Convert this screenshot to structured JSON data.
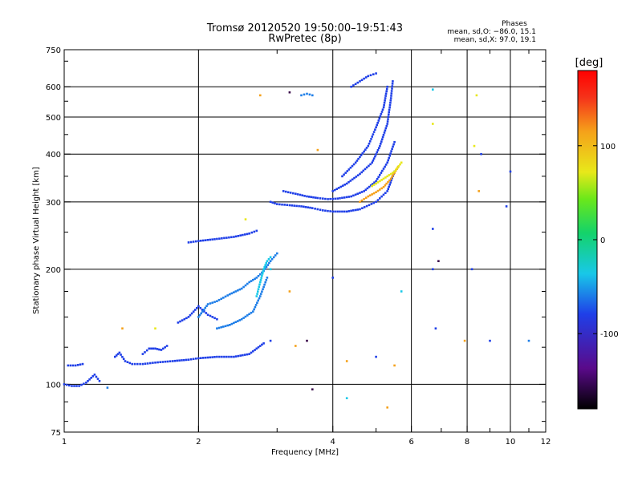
{
  "header": {
    "title_line1": "Tromsø 20120520 19:50:00–19:51:43",
    "title_line2": "RwPretec (8p)",
    "phases_title": "Phases",
    "phases_line1": "mean, sd,O: −86.0, 15.1",
    "phases_line2": "mean, sd,X:  97.0, 19.1"
  },
  "chart_data": {
    "type": "scatter",
    "xlabel": "Frequency [MHz]",
    "ylabel": "Stationary phase Virtual Height [km]",
    "xscale": "log",
    "yscale": "log",
    "xlim": [
      1,
      12
    ],
    "ylim": [
      75,
      750
    ],
    "x_ticks": [
      1,
      2,
      4,
      6,
      8,
      10,
      12
    ],
    "x_gridlines": [
      2,
      4,
      6,
      8,
      10
    ],
    "y_ticks": [
      75,
      100,
      200,
      300,
      400,
      500,
      600,
      750
    ],
    "y_gridlines": [
      100,
      200,
      300,
      400,
      500,
      600
    ],
    "grid": true,
    "colorbar": {
      "label": "[deg]",
      "range": [
        -180,
        180
      ],
      "ticks": [
        100,
        0,
        -100
      ]
    },
    "colors": {
      "blue": "#1f3fe8",
      "light_blue": "#1e7ee8",
      "cyan": "#18c8e8",
      "yellow": "#e8e81a",
      "orange": "#f5a11a",
      "dark": "#3a0a4a"
    },
    "traces": [
      {
        "x": [
          1.0,
          1.04,
          1.08,
          1.12,
          1.14,
          1.17,
          1.2
        ],
        "y": [
          100,
          99,
          99,
          101,
          103,
          106,
          102
        ],
        "color": "#1f3fe8"
      },
      {
        "x": [
          1.02,
          1.06,
          1.1
        ],
        "y": [
          112,
          112,
          113
        ],
        "color": "#1f3fe8"
      },
      {
        "x": [
          1.3,
          1.33,
          1.37,
          1.42,
          1.5,
          1.6,
          1.75,
          1.9,
          2.0,
          2.2,
          2.4,
          2.6,
          2.7,
          2.8
        ],
        "y": [
          118,
          121,
          115,
          113,
          113,
          114,
          115,
          116,
          117,
          118,
          118,
          120,
          124,
          128
        ],
        "color": "#1f3fe8"
      },
      {
        "x": [
          1.5,
          1.55,
          1.6,
          1.65,
          1.7
        ],
        "y": [
          120,
          124,
          124,
          123,
          126
        ],
        "color": "#1f3fe8"
      },
      {
        "x": [
          1.8,
          1.9,
          2.0,
          2.1,
          2.2
        ],
        "y": [
          145,
          150,
          160,
          152,
          148
        ],
        "color": "#1f3fe8"
      },
      {
        "x": [
          2.0,
          2.1,
          2.2,
          2.35,
          2.5,
          2.6,
          2.7,
          2.8,
          2.9,
          3.0
        ],
        "y": [
          150,
          162,
          165,
          172,
          178,
          185,
          190,
          198,
          210,
          220
        ],
        "color": "#1e7ee8"
      },
      {
        "x": [
          2.2,
          2.35,
          2.5,
          2.65,
          2.75,
          2.85
        ],
        "y": [
          140,
          143,
          148,
          155,
          170,
          190
        ],
        "color": "#1e7ee8"
      },
      {
        "x": [
          2.7,
          2.75,
          2.8,
          2.85,
          2.9
        ],
        "y": [
          170,
          185,
          200,
          210,
          215
        ],
        "color": "#18c8e8"
      },
      {
        "x": [
          1.9,
          2.0,
          2.2,
          2.4,
          2.6,
          2.7
        ],
        "y": [
          235,
          237,
          240,
          243,
          248,
          252
        ],
        "color": "#1f3fe8"
      },
      {
        "x": [
          2.9,
          3.0,
          3.2,
          3.4,
          3.6,
          3.8,
          4.0,
          4.3,
          4.6,
          5.0,
          5.3,
          5.5
        ],
        "y": [
          300,
          296,
          294,
          292,
          289,
          285,
          283,
          283,
          287,
          300,
          320,
          360
        ],
        "color": "#1f3fe8"
      },
      {
        "x": [
          3.1,
          3.3,
          3.5,
          3.7,
          3.9,
          4.1,
          4.4,
          4.7,
          5.0,
          5.3,
          5.5
        ],
        "y": [
          320,
          315,
          310,
          307,
          305,
          306,
          310,
          320,
          340,
          380,
          430
        ],
        "color": "#1f3fe8"
      },
      {
        "x": [
          4.0,
          4.3,
          4.6,
          4.9,
          5.1,
          5.3,
          5.4,
          5.45
        ],
        "y": [
          320,
          335,
          355,
          380,
          420,
          480,
          560,
          620
        ],
        "color": "#1f3fe8"
      },
      {
        "x": [
          4.2,
          4.5,
          4.8,
          5.0,
          5.2,
          5.3
        ],
        "y": [
          350,
          380,
          420,
          470,
          530,
          600
        ],
        "color": "#1f3fe8"
      },
      {
        "x": [
          4.6,
          4.8,
          5.0,
          5.2,
          5.4,
          5.6
        ],
        "y": [
          300,
          310,
          318,
          328,
          345,
          370
        ],
        "color": "#f5a11a"
      },
      {
        "x": [
          4.9,
          5.1,
          5.3,
          5.5,
          5.7
        ],
        "y": [
          330,
          340,
          350,
          360,
          380
        ],
        "color": "#e8e81a"
      },
      {
        "x": [
          3.4,
          3.5,
          3.6
        ],
        "y": [
          570,
          575,
          570
        ],
        "color": "#1e7ee8"
      },
      {
        "x": [
          4.4,
          4.6,
          4.8,
          5.0
        ],
        "y": [
          600,
          620,
          640,
          650
        ],
        "color": "#1f3fe8"
      }
    ],
    "points": [
      {
        "x": 3.2,
        "y": 580,
        "color": "#3a0a4a"
      },
      {
        "x": 2.75,
        "y": 570,
        "color": "#f5a11a"
      },
      {
        "x": 3.7,
        "y": 410,
        "color": "#f5a11a"
      },
      {
        "x": 6.7,
        "y": 590,
        "color": "#18c8e8"
      },
      {
        "x": 8.4,
        "y": 570,
        "color": "#e8e81a"
      },
      {
        "x": 6.7,
        "y": 480,
        "color": "#e8e81a"
      },
      {
        "x": 8.3,
        "y": 420,
        "color": "#e8e81a"
      },
      {
        "x": 8.6,
        "y": 400,
        "color": "#1f3fe8"
      },
      {
        "x": 10.0,
        "y": 360,
        "color": "#1f3fe8"
      },
      {
        "x": 8.5,
        "y": 320,
        "color": "#f5a11a"
      },
      {
        "x": 9.8,
        "y": 292,
        "color": "#1f3fe8"
      },
      {
        "x": 6.7,
        "y": 255,
        "color": "#1f3fe8"
      },
      {
        "x": 6.9,
        "y": 210,
        "color": "#3a0a4a"
      },
      {
        "x": 8.2,
        "y": 200,
        "color": "#1f3fe8"
      },
      {
        "x": 6.7,
        "y": 200,
        "color": "#1f3fe8"
      },
      {
        "x": 4.0,
        "y": 190,
        "color": "#1f3fe8"
      },
      {
        "x": 5.7,
        "y": 175,
        "color": "#18c8e8"
      },
      {
        "x": 6.8,
        "y": 140,
        "color": "#1f3fe8"
      },
      {
        "x": 7.9,
        "y": 130,
        "color": "#f5a11a"
      },
      {
        "x": 9.0,
        "y": 130,
        "color": "#1f3fe8"
      },
      {
        "x": 11.0,
        "y": 130,
        "color": "#1e7ee8"
      },
      {
        "x": 3.3,
        "y": 126,
        "color": "#f5a11a"
      },
      {
        "x": 3.5,
        "y": 130,
        "color": "#3a0a4a"
      },
      {
        "x": 4.3,
        "y": 115,
        "color": "#f5a11a"
      },
      {
        "x": 5.0,
        "y": 118,
        "color": "#1f3fe8"
      },
      {
        "x": 5.5,
        "y": 112,
        "color": "#f5a11a"
      },
      {
        "x": 4.3,
        "y": 92,
        "color": "#18c8e8"
      },
      {
        "x": 5.3,
        "y": 87,
        "color": "#f5a11a"
      },
      {
        "x": 3.6,
        "y": 97,
        "color": "#3a0a4a"
      },
      {
        "x": 1.25,
        "y": 98,
        "color": "#1e7ee8"
      },
      {
        "x": 1.35,
        "y": 140,
        "color": "#f5a11a"
      },
      {
        "x": 1.6,
        "y": 140,
        "color": "#e8e81a"
      },
      {
        "x": 2.9,
        "y": 130,
        "color": "#1f3fe8"
      },
      {
        "x": 2.55,
        "y": 270,
        "color": "#e8e81a"
      },
      {
        "x": 2.9,
        "y": 200,
        "color": "#18c8e8"
      },
      {
        "x": 3.2,
        "y": 175,
        "color": "#f5a11a"
      }
    ]
  }
}
